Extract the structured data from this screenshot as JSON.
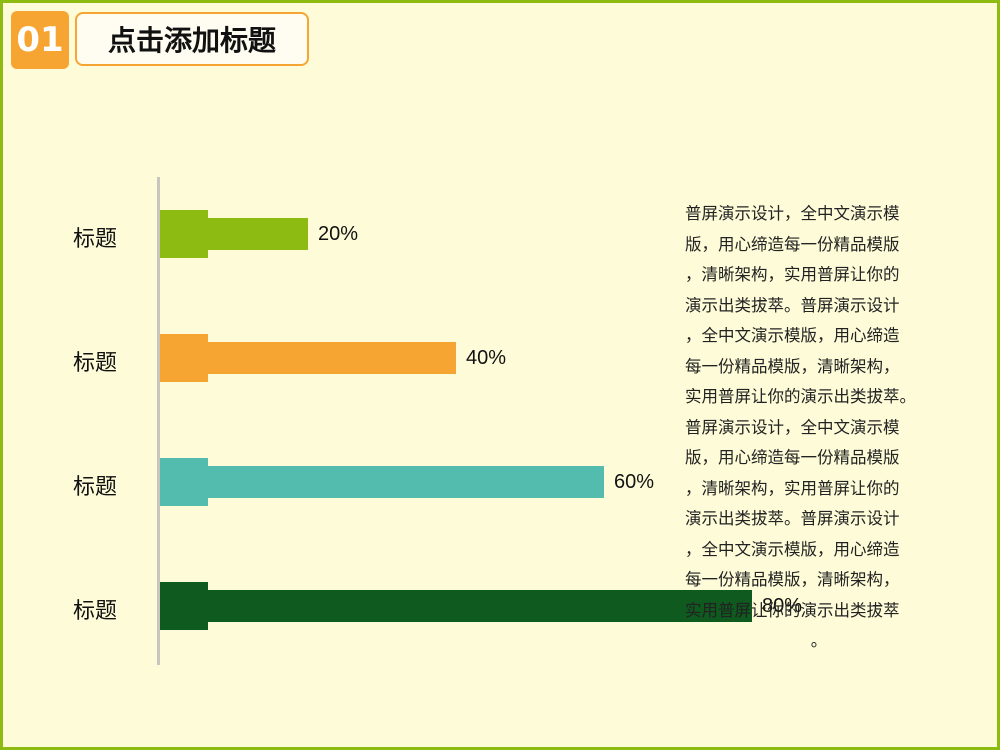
{
  "header": {
    "number": "01",
    "title": "点击添加标题"
  },
  "chart_data": {
    "type": "bar",
    "orientation": "horizontal",
    "categories": [
      "标题",
      "标题",
      "标题",
      "标题"
    ],
    "values": [
      20,
      40,
      60,
      80
    ],
    "value_labels": [
      "20%",
      "40%",
      "60%",
      "80%"
    ],
    "colors": [
      "#8DBB12",
      "#F7A532",
      "#54BCAE",
      "#0F5A1E"
    ],
    "xlim": [
      0,
      100
    ],
    "grid": false,
    "legend": "none"
  },
  "body_text": {
    "lines": [
      "普屏演示设计，全中文演示模",
      "版，用心缔造每一份精品模版",
      "，清晰架构，实用普屏让你的",
      "演示出类拔萃。普屏演示设计",
      "，全中文演示模版，用心缔造",
      "每一份精品模版，清晰架构，",
      "实用普屏让你的演示出类拔萃。",
      "普屏演示设计，全中文演示模",
      "版，用心缔造每一份精品模版",
      "，清晰架构，实用普屏让你的",
      "演示出类拔萃。普屏演示设计",
      "，全中文演示模版，用心缔造",
      "每一份精品模版，清晰架构，",
      "实用普屏让你的演示出类拔萃",
      "。"
    ]
  }
}
